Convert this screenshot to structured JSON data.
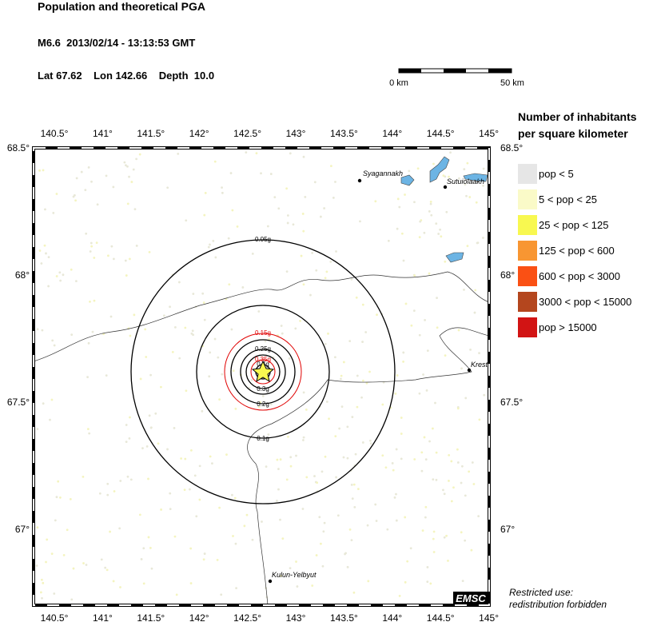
{
  "header": {
    "title": "Population and theoretical PGA",
    "event": "M6.6  2013/02/14 - 13:13:53 GMT",
    "location": "Lat 67.62    Lon 142.66    Depth  10.0"
  },
  "scale_bar": {
    "start": "0 km",
    "end": "50 km"
  },
  "map": {
    "lon_ticks": [
      "140.5°",
      "141°",
      "141.5°",
      "142°",
      "142.5°",
      "143°",
      "143.5°",
      "144°",
      "144.5°",
      "145°"
    ],
    "lat_ticks": [
      "68.5°",
      "68°",
      "67.5°",
      "67°"
    ],
    "contours": [
      "0.05g",
      "0.1g",
      "0.15g",
      "0.2g",
      "0.25g",
      "0.3g",
      "0.35g",
      "0.4g"
    ],
    "places": [
      "Syagannakh",
      "Sutuiolaakh",
      "Krest",
      "Kulun-Yelbyut"
    ],
    "badge": "EMSC"
  },
  "legend": {
    "title_lines": [
      "Number of inhabitants",
      "per square kilometer"
    ],
    "items": [
      {
        "label": "pop < 5",
        "color": "#e6e6e6"
      },
      {
        "label": "5 < pop < 25",
        "color": "#fafac8"
      },
      {
        "label": "25 < pop < 125",
        "color": "#f8f850"
      },
      {
        "label": "125 < pop < 600",
        "color": "#f89632"
      },
      {
        "label": "600 < pop < 3000",
        "color": "#fa5014"
      },
      {
        "label": "3000 < pop < 15000",
        "color": "#b4461e"
      },
      {
        "label": "pop > 15000",
        "color": "#d21414"
      }
    ]
  },
  "notice": [
    "Restricted use:",
    "redistribution forbidden"
  ]
}
